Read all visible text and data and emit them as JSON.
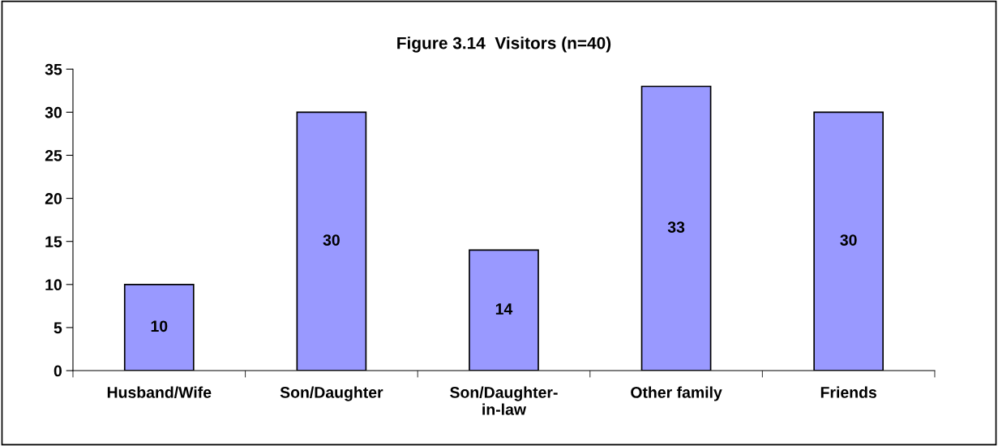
{
  "chart_data": {
    "type": "bar",
    "title": "Figure 3.14  Visitors (n=40)",
    "categories": [
      "Husband/Wife",
      "Son/Daughter",
      "Son/Daughter-in-law",
      "Other family",
      "Friends"
    ],
    "values": [
      10,
      30,
      14,
      33,
      30
    ],
    "color": "#9999ff",
    "ylim": [
      0,
      35
    ],
    "yticks": [
      0,
      5,
      10,
      15,
      20,
      25,
      30,
      35
    ],
    "grid": false,
    "data_labels": true
  }
}
